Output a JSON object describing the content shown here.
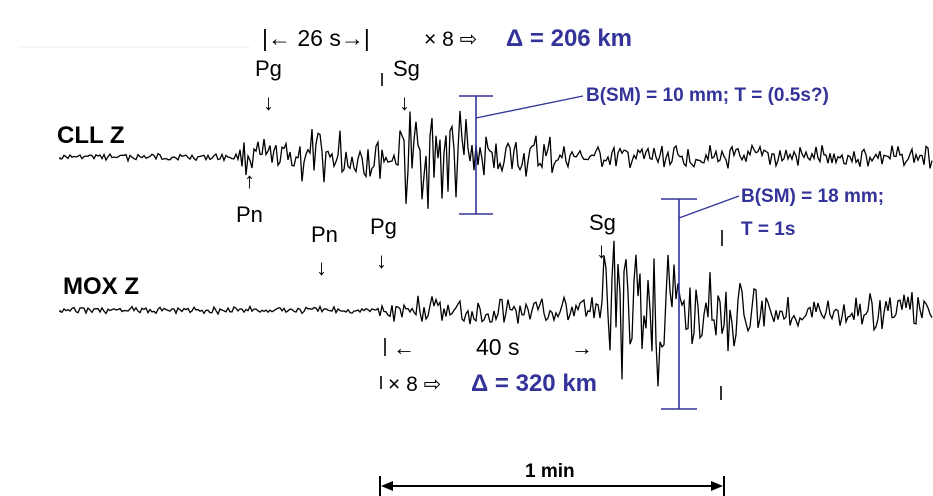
{
  "header": {
    "interval": "|← 26 s→|",
    "times8": "× 8 ⇨",
    "result": "Δ = 206 km"
  },
  "cll": {
    "station": "CLL  Z",
    "pg": "Pg",
    "sg": "Sg",
    "pn": "Pn",
    "amp_note": "B(SM) = 10 mm; T = (0.5s?)"
  },
  "mox": {
    "station": "MOX  Z",
    "pn": "Pn",
    "pg": "Pg",
    "sg": "Sg",
    "amp_note_1": "B(SM) = 18 mm;",
    "amp_note_2": "T = 1s",
    "interval": "40 s",
    "times8": "× 8 ⇨",
    "result": "Δ = 320 km"
  },
  "scale_bar": {
    "label": "1 min"
  },
  "colors": {
    "annotation": "#33339a",
    "trace": "#000000"
  }
}
